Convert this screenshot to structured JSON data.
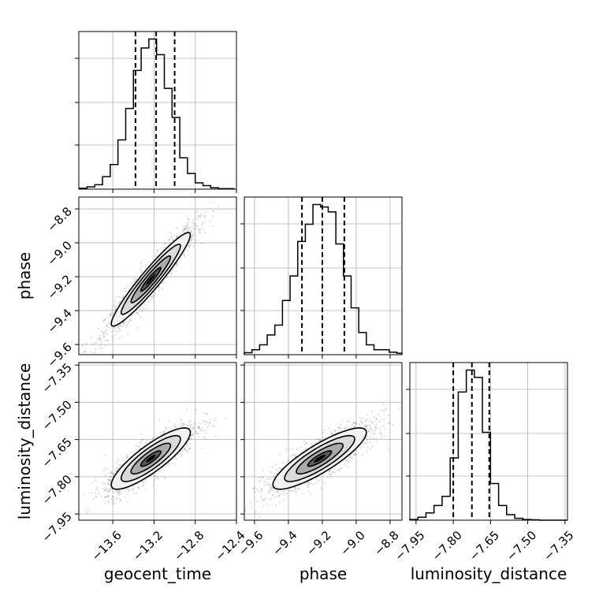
{
  "chart_data": {
    "type": "corner",
    "parameters": [
      "geocent_time",
      "phase",
      "luminosity_distance"
    ],
    "axis_labels": {
      "x": [
        "geocent_time",
        "phase",
        "luminosity_distance"
      ],
      "y": [
        "",
        "phase",
        "luminosity_distance"
      ]
    },
    "ranges": {
      "geocent_time": [
        -13.93,
        -12.4
      ],
      "phase": [
        -9.66,
        -8.73
      ],
      "luminosity_distance": [
        -7.975,
        -7.34
      ]
    },
    "ticks": {
      "geocent_time": {
        "values": [
          -13.6,
          -13.2,
          -12.8,
          -12.4
        ],
        "labels": [
          "−13.6",
          "−13.2",
          "−12.8",
          "−12.4"
        ]
      },
      "phase": {
        "values": [
          -9.6,
          -9.4,
          -9.2,
          -9.0,
          -8.8
        ],
        "labels": [
          "−9.6",
          "−9.4",
          "−9.2",
          "−9.0",
          "−8.8"
        ]
      },
      "luminosity_distance": {
        "values": [
          -7.95,
          -7.8,
          -7.65,
          -7.5,
          -7.35
        ],
        "labels": [
          "−7.95",
          "−7.80",
          "−7.65",
          "−7.50",
          "−7.35"
        ]
      }
    },
    "quantiles": {
      "geocent_time": [
        -13.38,
        -13.18,
        -13.0
      ],
      "phase": [
        -9.32,
        -9.2,
        -9.07
      ],
      "luminosity_distance": [
        -7.8,
        -7.725,
        -7.655
      ]
    },
    "histograms": {
      "geocent_time": {
        "bin_edges": [
          -13.925,
          -13.85,
          -13.775,
          -13.7,
          -13.625,
          -13.55,
          -13.475,
          -13.4,
          -13.325,
          -13.25,
          -13.175,
          -13.1,
          -13.025,
          -12.95,
          -12.875,
          -12.8,
          -12.725,
          -12.65,
          -12.575,
          -12.5,
          -12.425
        ],
        "counts": [
          2,
          5,
          10,
          28,
          55,
          110,
          180,
          265,
          315,
          335,
          300,
          225,
          160,
          70,
          35,
          14,
          8,
          3,
          1,
          1
        ]
      },
      "phase": {
        "bin_edges": [
          -9.66,
          -9.615,
          -9.57,
          -9.525,
          -9.48,
          -9.435,
          -9.39,
          -9.345,
          -9.3,
          -9.255,
          -9.21,
          -9.165,
          -9.12,
          -9.075,
          -9.03,
          -8.985,
          -8.94,
          -8.895,
          -8.85,
          -8.805,
          -8.76,
          -8.73
        ],
        "counts": [
          4,
          10,
          20,
          40,
          60,
          110,
          160,
          230,
          265,
          305,
          300,
          290,
          225,
          160,
          95,
          45,
          20,
          10,
          10,
          5,
          3
        ]
      },
      "luminosity_distance": {
        "bin_edges": [
          -7.975,
          -7.9425,
          -7.91,
          -7.8775,
          -7.845,
          -7.8125,
          -7.78,
          -7.7475,
          -7.715,
          -7.6825,
          -7.65,
          -7.6175,
          -7.585,
          -7.5525,
          -7.52,
          -7.4875,
          -7.455,
          -7.4225,
          -7.39,
          -7.3575,
          -7.34
        ],
        "counts": [
          2,
          8,
          20,
          40,
          65,
          170,
          350,
          410,
          390,
          240,
          100,
          40,
          15,
          5,
          2,
          1,
          0,
          0,
          0,
          0
        ]
      }
    },
    "correlations": {
      "phase|geocent_time": 0.95,
      "luminosity_distance|geocent_time": 0.85,
      "luminosity_distance|phase": 0.85
    },
    "grid": true
  }
}
